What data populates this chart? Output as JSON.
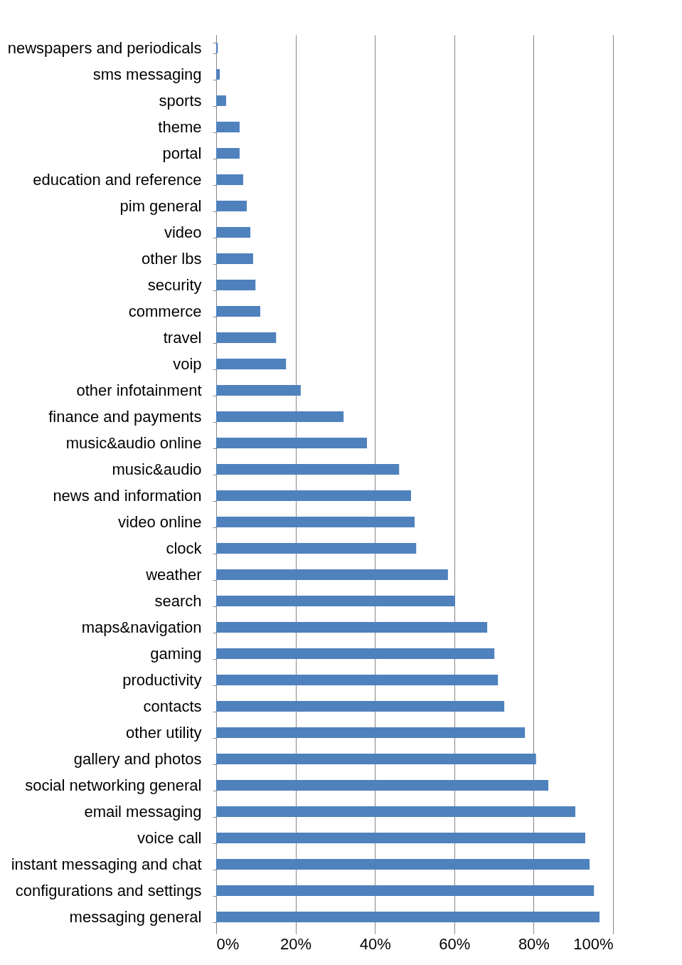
{
  "chart_data": {
    "type": "bar",
    "orientation": "horizontal",
    "categories": [
      "newspapers and periodicals",
      "sms messaging",
      "sports",
      "theme",
      "portal",
      "education and reference",
      "pim general",
      "video",
      "other lbs",
      "security",
      "commerce",
      "travel",
      "voip",
      "other infotainment",
      "finance and payments",
      "music&audio online",
      "music&audio",
      "news and information",
      "video online",
      "clock",
      "weather",
      "search",
      "maps&navigation",
      "gaming",
      "productivity",
      "contacts",
      "other utility",
      "gallery and photos",
      "social networking general",
      "email messaging",
      "voice call",
      "instant messaging and chat",
      "configurations and settings",
      "messaging general"
    ],
    "values": [
      0.4,
      0.9,
      2.5,
      5.9,
      5.9,
      6.8,
      7.7,
      8.6,
      9.3,
      9.9,
      11.1,
      15.1,
      17.6,
      21.3,
      32.1,
      38,
      46.1,
      49.1,
      50,
      50.4,
      58.4,
      60.2,
      68.3,
      70.1,
      71,
      72.6,
      77.8,
      80.6,
      83.7,
      90.5,
      93,
      94.1,
      95.2,
      96.6
    ],
    "color": "#4f81bd",
    "xlim": [
      0,
      100
    ],
    "xticks": [
      {
        "value": 0,
        "label": "0%"
      },
      {
        "value": 20,
        "label": "20%"
      },
      {
        "value": 40,
        "label": "40%"
      },
      {
        "value": 60,
        "label": "60%"
      },
      {
        "value": 80,
        "label": "80%"
      },
      {
        "value": 100,
        "label": "100%"
      }
    ],
    "grid": "x"
  }
}
